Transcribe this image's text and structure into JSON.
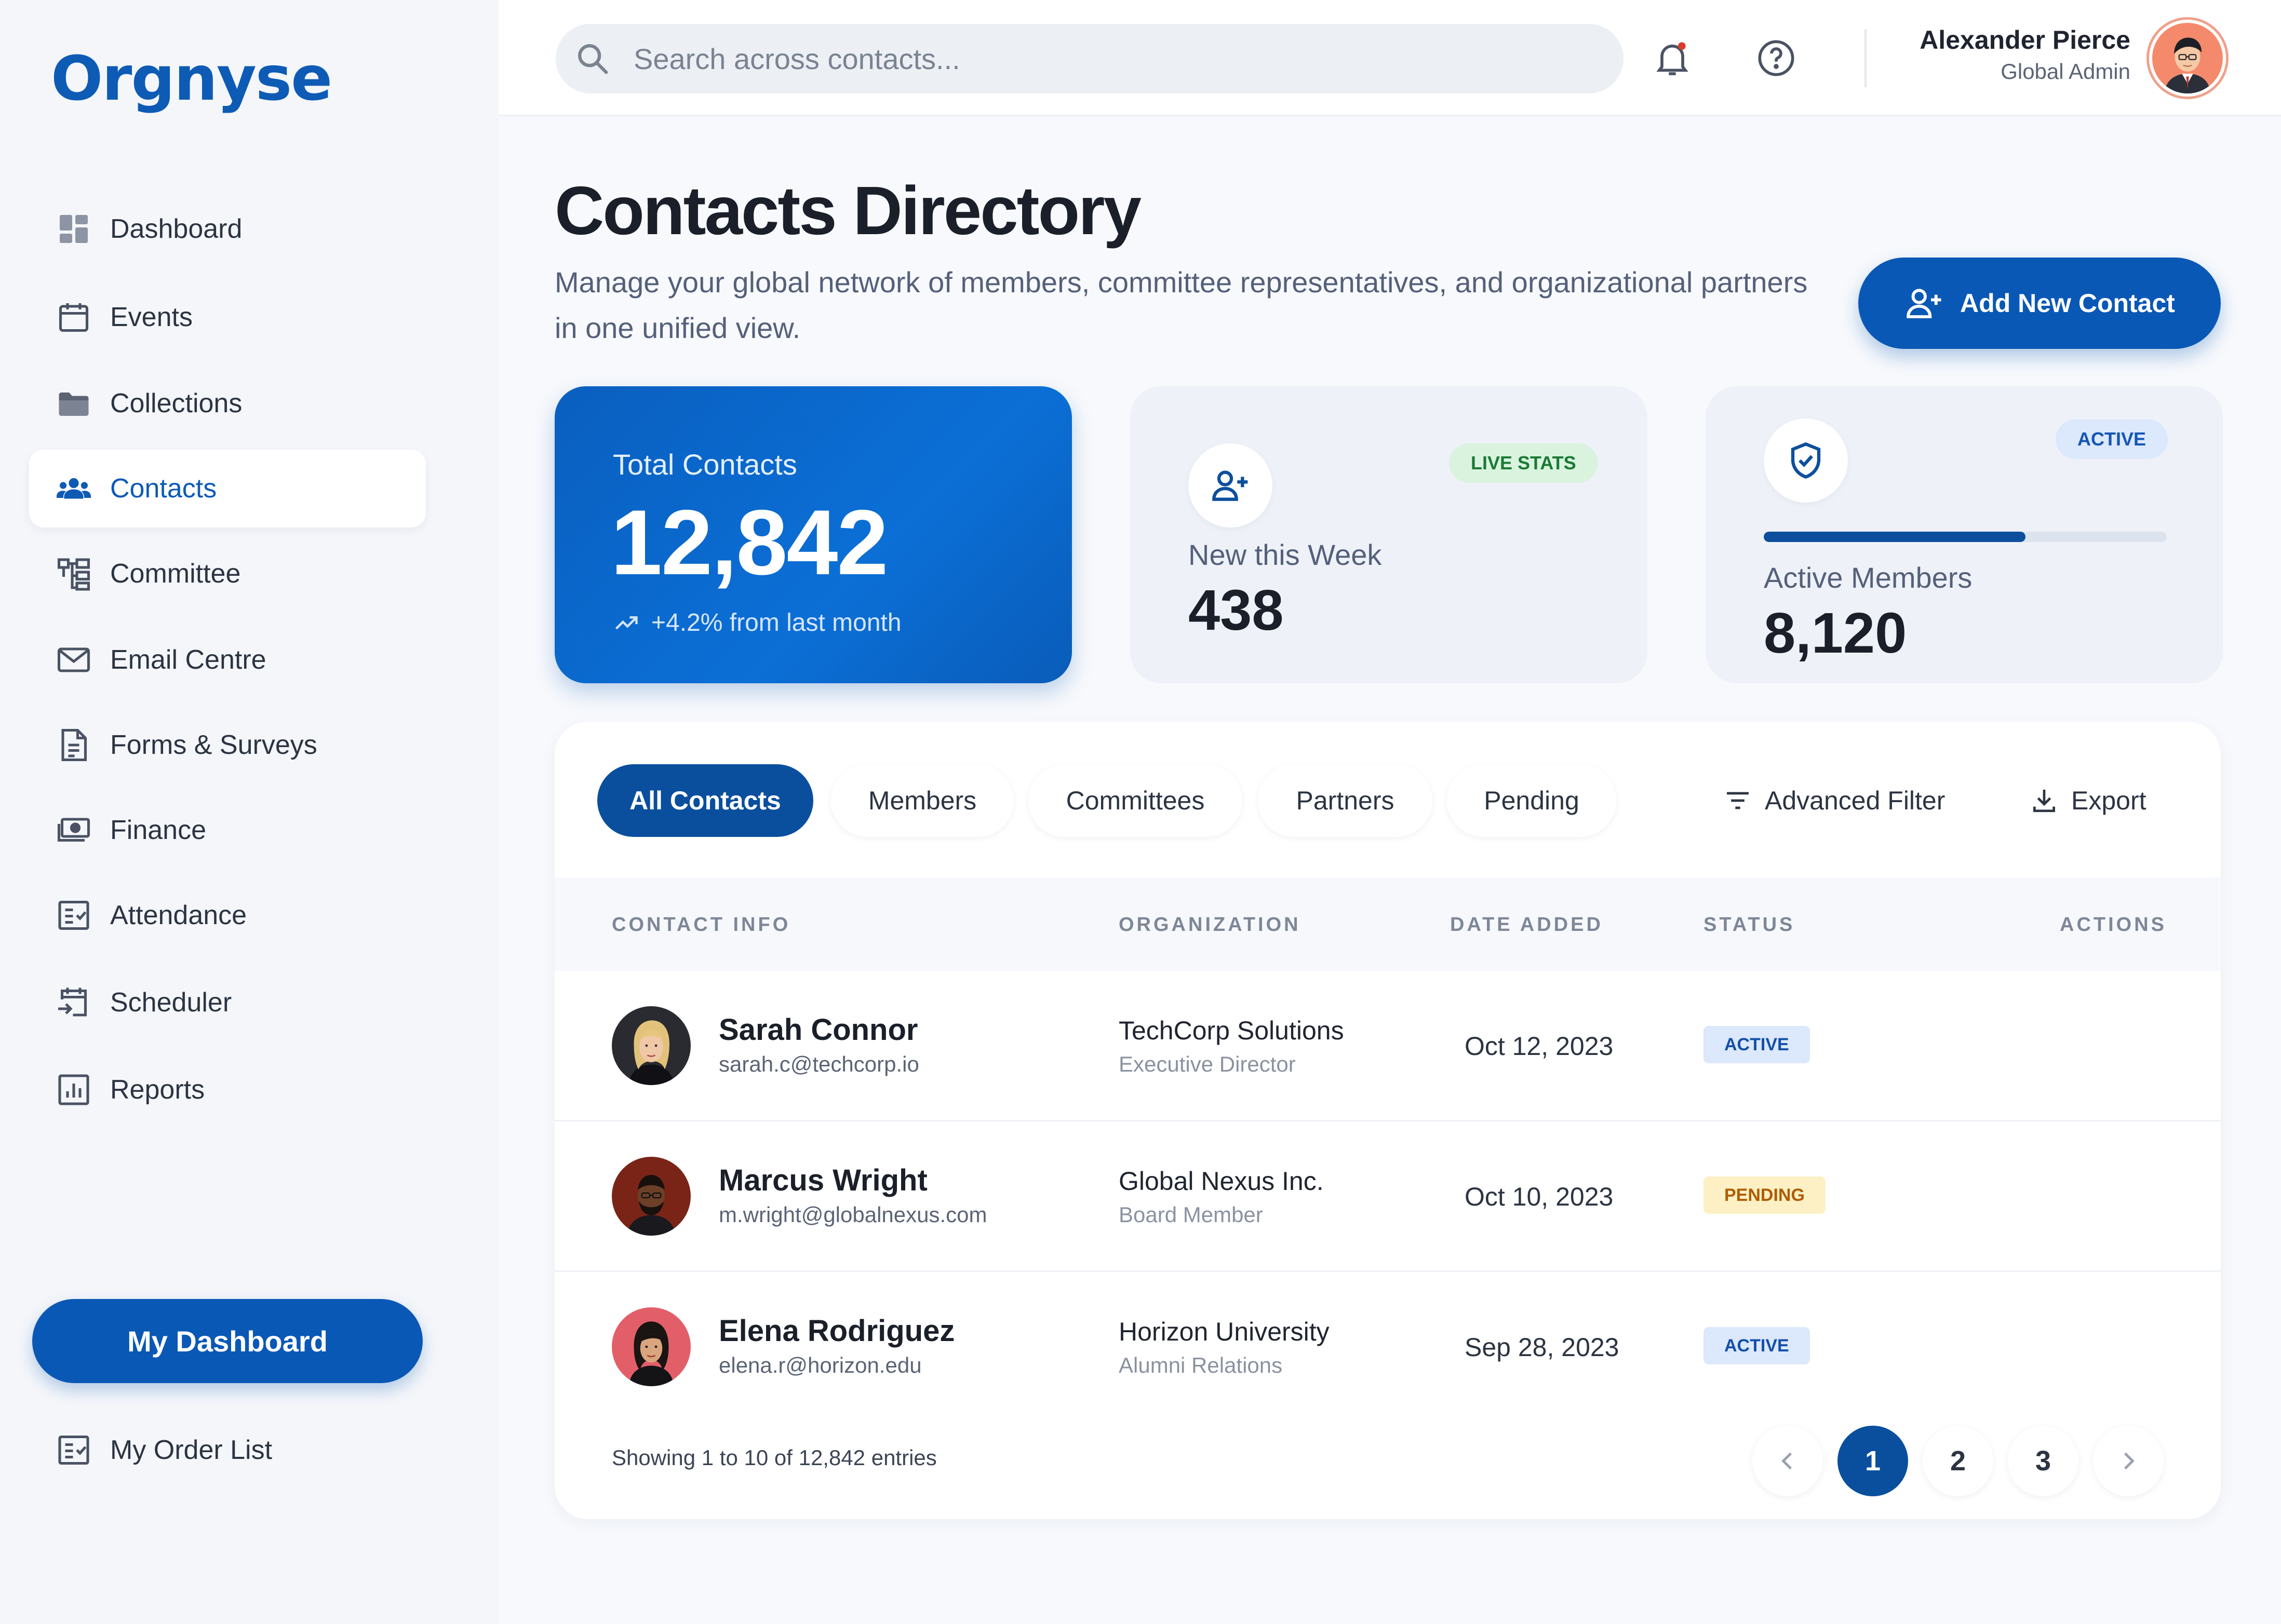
{
  "brand": {
    "logo_text": "Orgnyse",
    "accent": "#0a58b5"
  },
  "sidebar": {
    "items": [
      {
        "label": "Dashboard",
        "icon": "dashboard-icon"
      },
      {
        "label": "Events",
        "icon": "calendar-icon"
      },
      {
        "label": "Collections",
        "icon": "folder-icon"
      },
      {
        "label": "Contacts",
        "icon": "people-icon",
        "active": true
      },
      {
        "label": "Committee",
        "icon": "org-chart-icon"
      },
      {
        "label": "Email Centre",
        "icon": "envelope-icon"
      },
      {
        "label": "Forms & Surveys",
        "icon": "document-icon"
      },
      {
        "label": "Finance",
        "icon": "money-icon"
      },
      {
        "label": "Attendance",
        "icon": "checklist-icon"
      },
      {
        "label": "Scheduler",
        "icon": "schedule-icon"
      },
      {
        "label": "Reports",
        "icon": "bar-report-icon"
      }
    ],
    "my_dashboard": "My Dashboard",
    "order_list": "My Order List"
  },
  "topbar": {
    "search_placeholder": "Search across contacts...",
    "user_name": "Alexander Pierce",
    "user_role": "Global Admin"
  },
  "header": {
    "title": "Contacts Directory",
    "subtitle": "Manage your global network of members, committee representatives, and organizational partners in one unified view.",
    "add_button": "Add New Contact"
  },
  "stats": {
    "total": {
      "label": "Total Contacts",
      "value": "12,842",
      "trend": "+4.2% from last month"
    },
    "week": {
      "label": "New this Week",
      "value": "438",
      "badge": "LIVE STATS"
    },
    "active": {
      "label": "Active Members",
      "value": "8,120",
      "badge": "ACTIVE",
      "progress": 0.65
    }
  },
  "tabs": [
    "All Contacts",
    "Members",
    "Committees",
    "Partners",
    "Pending"
  ],
  "tools": {
    "filter": "Advanced Filter",
    "export": "Export"
  },
  "table": {
    "columns": [
      "CONTACT INFO",
      "ORGANIZATION",
      "DATE ADDED",
      "STATUS",
      "ACTIONS"
    ],
    "rows": [
      {
        "name": "Sarah Connor",
        "email": "sarah.c@techcorp.io",
        "org": "TechCorp Solutions",
        "role": "Executive Director",
        "date": "Oct 12, 2023",
        "status": "ACTIVE"
      },
      {
        "name": "Marcus Wright",
        "email": "m.wright@globalnexus.com",
        "org": "Global Nexus Inc.",
        "role": "Board Member",
        "date": "Oct 10, 2023",
        "status": "PENDING"
      },
      {
        "name": "Elena Rodriguez",
        "email": "elena.r@horizon.edu",
        "org": "Horizon University",
        "role": "Alumni Relations",
        "date": "Sep 28, 2023",
        "status": "ACTIVE"
      }
    ]
  },
  "pagination": {
    "summary": "Showing 1 to 10 of 12,842 entries",
    "pages": [
      "1",
      "2",
      "3"
    ],
    "current": "1"
  },
  "colors": {
    "active_badge": "#dce8fb",
    "pending_badge": "#fdf0c4",
    "live_badge": "#d9f3df"
  }
}
